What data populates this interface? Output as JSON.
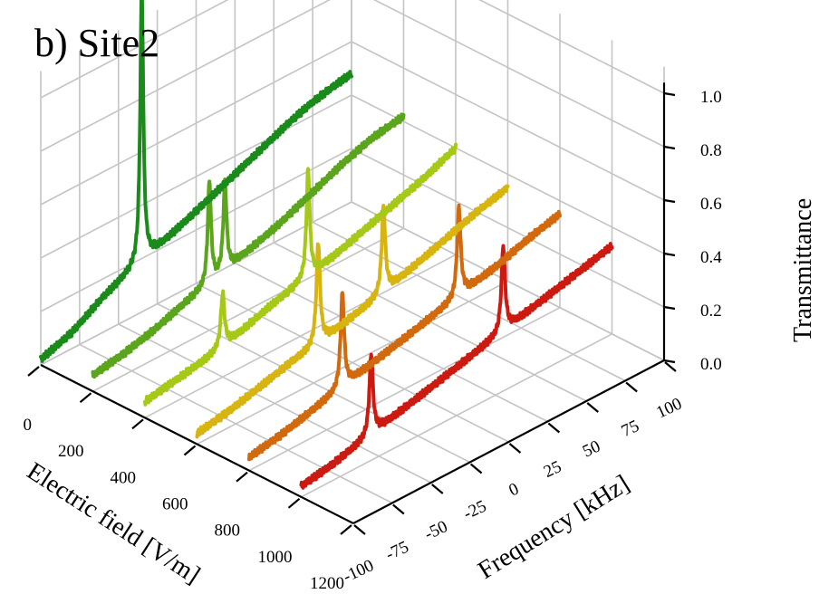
{
  "chart_data": {
    "type": "line",
    "title": "b) Site2",
    "xlabel": "Electric field [V/m]",
    "ylabel": "Frequency [kHz]",
    "zlabel": "Transmittance",
    "projection": "3d",
    "grid": true,
    "x_ticks": [
      "0",
      "200",
      "400",
      "600",
      "800",
      "1000",
      "1200"
    ],
    "y_ticks": [
      "-100",
      "-75",
      "-50",
      "-25",
      "0",
      "25",
      "50",
      "75",
      "100"
    ],
    "z_ticks": [
      "0.0",
      "0.2",
      "0.4",
      "0.6",
      "0.8",
      "1.0"
    ],
    "xlim": [
      0,
      1200
    ],
    "ylim": [
      -100,
      100
    ],
    "zlim": [
      0,
      1.0
    ],
    "series": [
      {
        "electric_field": 0,
        "color": "#1a8a1a",
        "baseline": [
          [
            -100,
            0.02
          ],
          [
            -80,
            0.06
          ],
          [
            -60,
            0.13
          ],
          [
            -40,
            0.18
          ],
          [
            -20,
            0.22
          ],
          [
            0,
            0.27
          ],
          [
            20,
            0.32
          ],
          [
            40,
            0.37
          ],
          [
            60,
            0.42
          ],
          [
            75,
            0.45
          ],
          [
            90,
            0.47
          ],
          [
            100,
            0.48
          ]
        ],
        "peaks": [
          {
            "frequency": -35,
            "height": 1.02,
            "width": 1.2
          }
        ]
      },
      {
        "electric_field": 200,
        "color": "#5aa51c",
        "baseline": [
          [
            -100,
            0.06
          ],
          [
            -80,
            0.08
          ],
          [
            -60,
            0.11
          ],
          [
            -40,
            0.15
          ],
          [
            -20,
            0.18
          ],
          [
            0,
            0.22
          ],
          [
            20,
            0.26
          ],
          [
            40,
            0.31
          ],
          [
            60,
            0.36
          ],
          [
            80,
            0.4
          ],
          [
            100,
            0.42
          ]
        ],
        "peaks": [
          {
            "frequency": -25,
            "height": 0.38,
            "width": 1.3
          },
          {
            "frequency": -15,
            "height": 0.33,
            "width": 1.3
          }
        ]
      },
      {
        "electric_field": 400,
        "color": "#a6c817",
        "baseline": [
          [
            -100,
            0.06
          ],
          [
            -80,
            0.08
          ],
          [
            -60,
            0.1
          ],
          [
            -40,
            0.13
          ],
          [
            -20,
            0.17
          ],
          [
            0,
            0.2
          ],
          [
            20,
            0.23
          ],
          [
            40,
            0.27
          ],
          [
            60,
            0.31
          ],
          [
            80,
            0.35
          ],
          [
            100,
            0.4
          ]
        ],
        "peaks": [
          {
            "frequency": -50,
            "height": 0.2,
            "width": 1.4
          },
          {
            "frequency": 5,
            "height": 0.4,
            "width": 1.3
          }
        ]
      },
      {
        "electric_field": 600,
        "color": "#d8b411",
        "baseline": [
          [
            -100,
            0.04
          ],
          [
            -80,
            0.06
          ],
          [
            -60,
            0.09
          ],
          [
            -40,
            0.12
          ],
          [
            -20,
            0.14
          ],
          [
            0,
            0.17
          ],
          [
            20,
            0.2
          ],
          [
            40,
            0.24
          ],
          [
            60,
            0.28
          ],
          [
            80,
            0.32
          ],
          [
            100,
            0.35
          ]
        ],
        "peaks": [
          {
            "frequency": -22,
            "height": 0.38,
            "width": 1.4
          },
          {
            "frequency": 20,
            "height": 0.32,
            "width": 1.4
          }
        ]
      },
      {
        "electric_field": 800,
        "color": "#d2690c",
        "baseline": [
          [
            -100,
            0.05
          ],
          [
            -80,
            0.07
          ],
          [
            -60,
            0.1
          ],
          [
            -40,
            0.13
          ],
          [
            -20,
            0.16
          ],
          [
            0,
            0.19
          ],
          [
            20,
            0.22
          ],
          [
            40,
            0.25
          ],
          [
            60,
            0.28
          ],
          [
            80,
            0.32
          ],
          [
            100,
            0.35
          ]
        ],
        "peaks": [
          {
            "frequency": -40,
            "height": 0.35,
            "width": 1.4
          },
          {
            "frequency": 35,
            "height": 0.33,
            "width": 1.4
          }
        ]
      },
      {
        "electric_field": 1000,
        "color": "#cc1a10",
        "baseline": [
          [
            -100,
            0.04
          ],
          [
            -80,
            0.06
          ],
          [
            -60,
            0.09
          ],
          [
            -40,
            0.12
          ],
          [
            -20,
            0.15
          ],
          [
            0,
            0.18
          ],
          [
            20,
            0.21
          ],
          [
            40,
            0.24
          ],
          [
            60,
            0.27
          ],
          [
            80,
            0.3
          ],
          [
            100,
            0.33
          ]
        ],
        "peaks": [
          {
            "frequency": -55,
            "height": 0.3,
            "width": 1.4
          },
          {
            "frequency": 30,
            "height": 0.32,
            "width": 1.4
          }
        ]
      }
    ]
  }
}
